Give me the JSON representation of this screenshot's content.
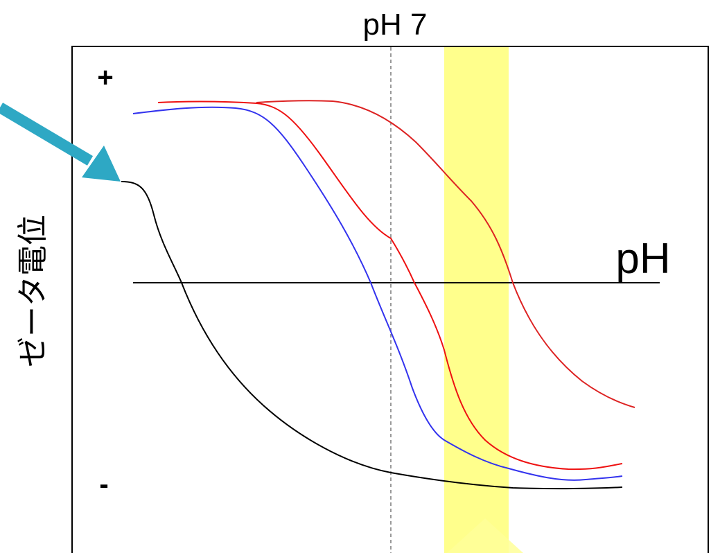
{
  "diagram": {
    "top_label": "pH 7",
    "axis_label": "pH",
    "y_axis_label": "ゼータ電位",
    "plus_label": "+",
    "minus_label": "-"
  },
  "colors": {
    "frame": "#000000",
    "highlight_band": "#ffff66",
    "arrow": "#2ea8c4",
    "curve_black": "#000000",
    "curve_blue": "#3333ee",
    "curve_red": "#ee1111",
    "curve_red_light": "#dd2222",
    "reference_line": "#999999"
  },
  "curves": [
    {
      "name": "black",
      "icon": "curve"
    },
    {
      "name": "blue",
      "icon": "curve"
    },
    {
      "name": "red",
      "icon": "curve"
    },
    {
      "name": "red-light",
      "icon": "curve"
    }
  ]
}
